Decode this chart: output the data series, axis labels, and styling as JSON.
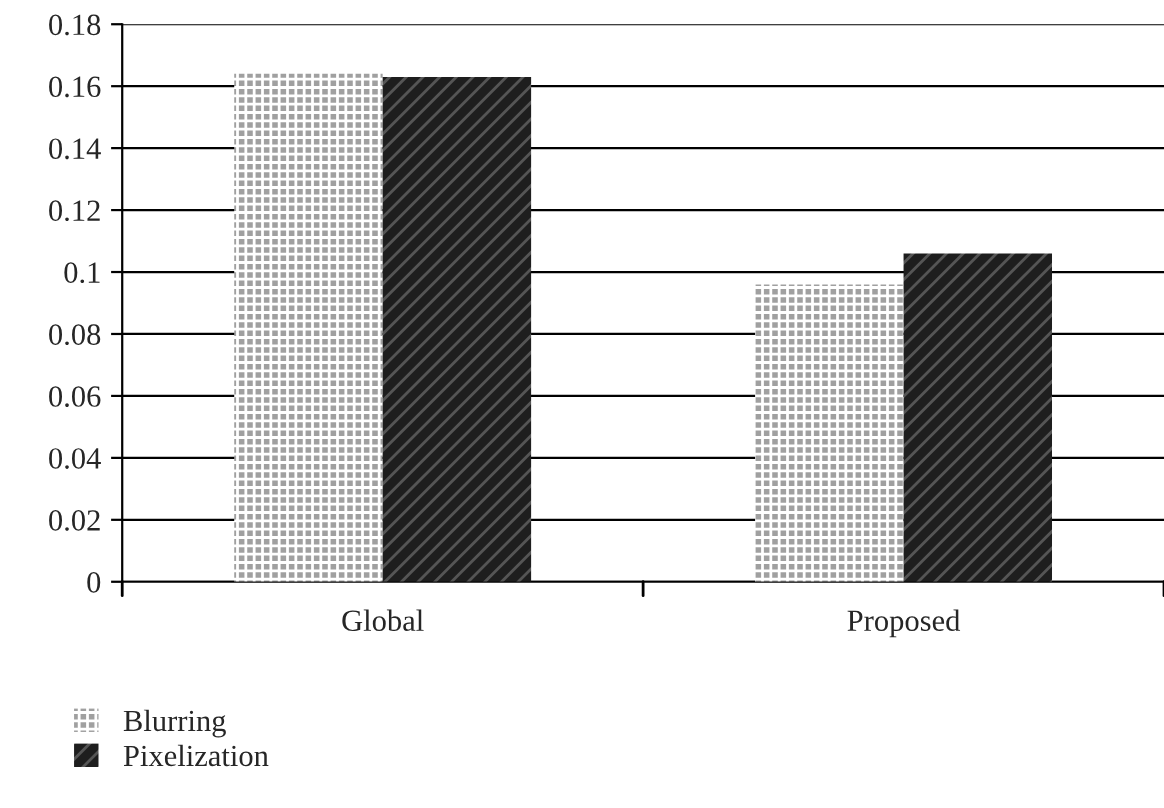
{
  "chart_data": {
    "type": "bar",
    "categories": [
      "Global",
      "Proposed"
    ],
    "series": [
      {
        "name": "Blurring",
        "color": "#a0a0a0",
        "values": [
          0.164,
          0.096
        ]
      },
      {
        "name": "Pixelization",
        "color": "#1e1e1e",
        "values": [
          0.163,
          0.106
        ]
      }
    ],
    "ylim": [
      0,
      0.18
    ],
    "yticks": [
      0,
      0.02,
      0.04,
      0.06,
      0.08,
      0.1,
      0.12,
      0.14,
      0.16,
      0.18
    ],
    "grid": "y",
    "legend": "bottom left"
  }
}
